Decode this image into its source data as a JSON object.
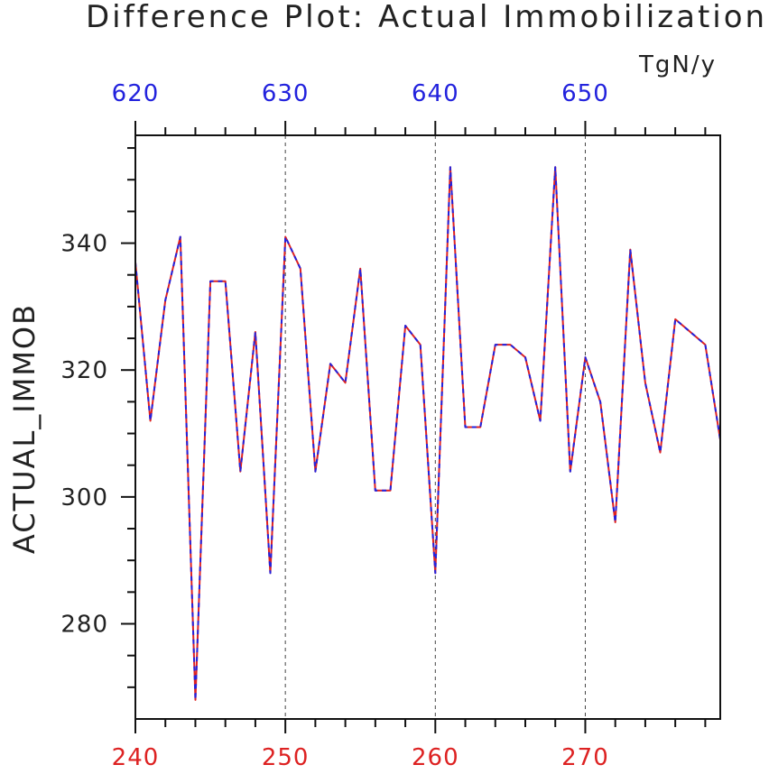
{
  "chart_data": {
    "type": "line",
    "title": "Difference Plot: Actual Immobilization",
    "units": "TgN/y",
    "ylabel": "ACTUAL_IMMOB",
    "ylim": [
      265,
      357
    ],
    "x_bottom": {
      "range": [
        240,
        279
      ],
      "ticks": [
        240,
        250,
        260,
        270
      ],
      "color": "#dd2222"
    },
    "x_top": {
      "range": [
        620,
        659
      ],
      "ticks": [
        620,
        630,
        640,
        650
      ],
      "color": "#2222dd"
    },
    "y_ticks": [
      280,
      300,
      320,
      340
    ],
    "grid": "vertical dashed at major x ticks",
    "series": [
      {
        "color": "#dd2222",
        "style": "solid",
        "x": [
          240,
          241,
          242,
          243,
          244,
          245,
          246,
          247,
          248,
          249,
          250,
          251,
          252,
          253,
          254,
          255,
          256,
          257,
          258,
          259,
          260,
          261,
          262,
          263,
          264,
          265,
          266,
          267,
          268,
          269,
          270,
          271,
          272,
          273,
          274,
          275,
          276,
          277,
          278,
          279
        ],
        "values": [
          337,
          312,
          331,
          341,
          268,
          334,
          334,
          304,
          326,
          288,
          341,
          336,
          304,
          321,
          318,
          336,
          301,
          301,
          327,
          324,
          288,
          352,
          311,
          311,
          324,
          324,
          322,
          312,
          352,
          304,
          322,
          315,
          296,
          339,
          318,
          307,
          328,
          326,
          324,
          309
        ]
      },
      {
        "color": "#2222dd",
        "style": "dashed",
        "x": [
          240,
          241,
          242,
          243,
          244,
          245,
          246,
          247,
          248,
          249,
          250,
          251,
          252,
          253,
          254,
          255,
          256,
          257,
          258,
          259,
          260,
          261,
          262,
          263,
          264,
          265,
          266,
          267,
          268,
          269,
          270,
          271,
          272,
          273,
          274,
          275,
          276,
          277,
          278,
          279
        ],
        "values": [
          337,
          312,
          331,
          341,
          268,
          334,
          334,
          304,
          326,
          288,
          341,
          336,
          304,
          321,
          318,
          336,
          301,
          301,
          327,
          324,
          288,
          352,
          311,
          311,
          324,
          324,
          322,
          312,
          352,
          304,
          322,
          315,
          296,
          339,
          318,
          307,
          328,
          326,
          324,
          309
        ]
      }
    ]
  }
}
